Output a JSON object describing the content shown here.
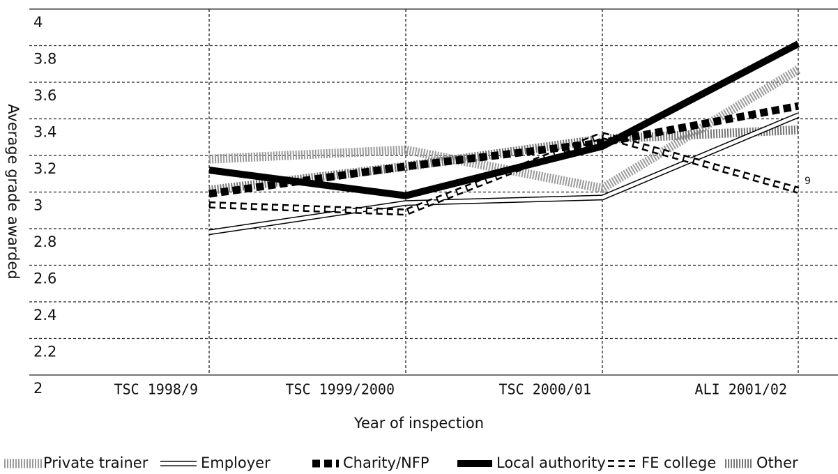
{
  "chart_data": {
    "type": "line",
    "x_label": "Year of inspection",
    "y_label": "Average grade awarded",
    "categories": [
      "TSC 1998/9",
      "TSC 1999/2000",
      "TSC 2000/01",
      "ALI 2001/02"
    ],
    "series": [
      {
        "name": "Private trainer",
        "color": "#9a9a9a",
        "values": [
          3.18,
          3.23,
          3.02,
          3.67
        ]
      },
      {
        "name": "Employer",
        "color": "#ffffff",
        "values": [
          2.78,
          2.94,
          2.97,
          3.42
        ]
      },
      {
        "name": "Charity/NFP",
        "color": "#000000",
        "values": [
          2.99,
          3.14,
          3.27,
          3.47
        ]
      },
      {
        "name": "Local authority",
        "color": "#000000",
        "values": [
          3.12,
          2.98,
          3.25,
          3.81
        ]
      },
      {
        "name": "FE college",
        "color": "#ffffff",
        "values": [
          2.93,
          2.89,
          3.31,
          3.01
        ]
      },
      {
        "name": "Other",
        "color": "#777777",
        "values": [
          3.01,
          3.14,
          3.29,
          3.34
        ]
      }
    ],
    "annotation": "9",
    "ylim": [
      2,
      4
    ],
    "yticks": [
      2,
      2.2,
      2.4,
      2.6,
      2.8,
      3,
      3.2,
      3.4,
      3.6,
      3.8,
      4
    ],
    "grid": true,
    "legend": "bottom"
  }
}
